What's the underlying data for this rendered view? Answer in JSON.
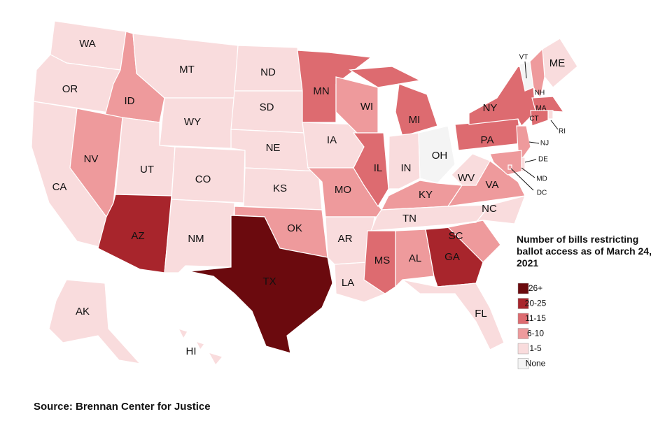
{
  "title": "Number of bills restricting ballot access as of March 24, 2021",
  "source": "Source: Brennan Center for Justice",
  "legend": [
    {
      "label": "26+",
      "color": "#6b0a0e"
    },
    {
      "label": "20-25",
      "color": "#a8252c"
    },
    {
      "label": "11-15",
      "color": "#dd6b70"
    },
    {
      "label": "6-10",
      "color": "#ee9a9c"
    },
    {
      "label": "1-5",
      "color": "#f9dcdd"
    },
    {
      "label": "None",
      "color": "#f4f4f4"
    }
  ],
  "states": [
    {
      "label": "WA",
      "category": "1-5"
    },
    {
      "label": "OR",
      "category": "1-5"
    },
    {
      "label": "CA",
      "category": "1-5"
    },
    {
      "label": "ID",
      "category": "6-10"
    },
    {
      "label": "NV",
      "category": "6-10"
    },
    {
      "label": "MT",
      "category": "1-5"
    },
    {
      "label": "WY",
      "category": "1-5"
    },
    {
      "label": "UT",
      "category": "1-5"
    },
    {
      "label": "AZ",
      "category": "20-25"
    },
    {
      "label": "CO",
      "category": "1-5"
    },
    {
      "label": "NM",
      "category": "1-5"
    },
    {
      "label": "ND",
      "category": "1-5"
    },
    {
      "label": "SD",
      "category": "1-5"
    },
    {
      "label": "NE",
      "category": "1-5"
    },
    {
      "label": "KS",
      "category": "1-5"
    },
    {
      "label": "OK",
      "category": "6-10"
    },
    {
      "label": "TX",
      "category": "26+"
    },
    {
      "label": "MN",
      "category": "11-15"
    },
    {
      "label": "IA",
      "category": "1-5"
    },
    {
      "label": "MO",
      "category": "6-10"
    },
    {
      "label": "AR",
      "category": "1-5"
    },
    {
      "label": "LA",
      "category": "1-5"
    },
    {
      "label": "WI",
      "category": "6-10"
    },
    {
      "label": "IL",
      "category": "11-15"
    },
    {
      "label": "MI",
      "category": "11-15"
    },
    {
      "label": "IN",
      "category": "1-5"
    },
    {
      "label": "OH",
      "category": "None"
    },
    {
      "label": "KY",
      "category": "6-10"
    },
    {
      "label": "TN",
      "category": "1-5"
    },
    {
      "label": "MS",
      "category": "11-15"
    },
    {
      "label": "AL",
      "category": "6-10"
    },
    {
      "label": "GA",
      "category": "20-25"
    },
    {
      "label": "FL",
      "category": "1-5"
    },
    {
      "label": "SC",
      "category": "6-10"
    },
    {
      "label": "NC",
      "category": "1-5"
    },
    {
      "label": "VA",
      "category": "6-10"
    },
    {
      "label": "WV",
      "category": "1-5"
    },
    {
      "label": "PA",
      "category": "11-15"
    },
    {
      "label": "NY",
      "category": "11-15"
    },
    {
      "label": "VT",
      "category": "None"
    },
    {
      "label": "ME",
      "category": "1-5"
    },
    {
      "label": "NH",
      "category": "6-10"
    },
    {
      "label": "MA",
      "category": "11-15"
    },
    {
      "label": "RI",
      "category": "1-5"
    },
    {
      "label": "CT",
      "category": "11-15"
    },
    {
      "label": "NJ",
      "category": "6-10"
    },
    {
      "label": "DE",
      "category": "1-5"
    },
    {
      "label": "MD",
      "category": "6-10"
    },
    {
      "label": "DC",
      "category": "6-10"
    },
    {
      "label": "AK",
      "category": "1-5"
    },
    {
      "label": "HI",
      "category": "1-5"
    }
  ]
}
